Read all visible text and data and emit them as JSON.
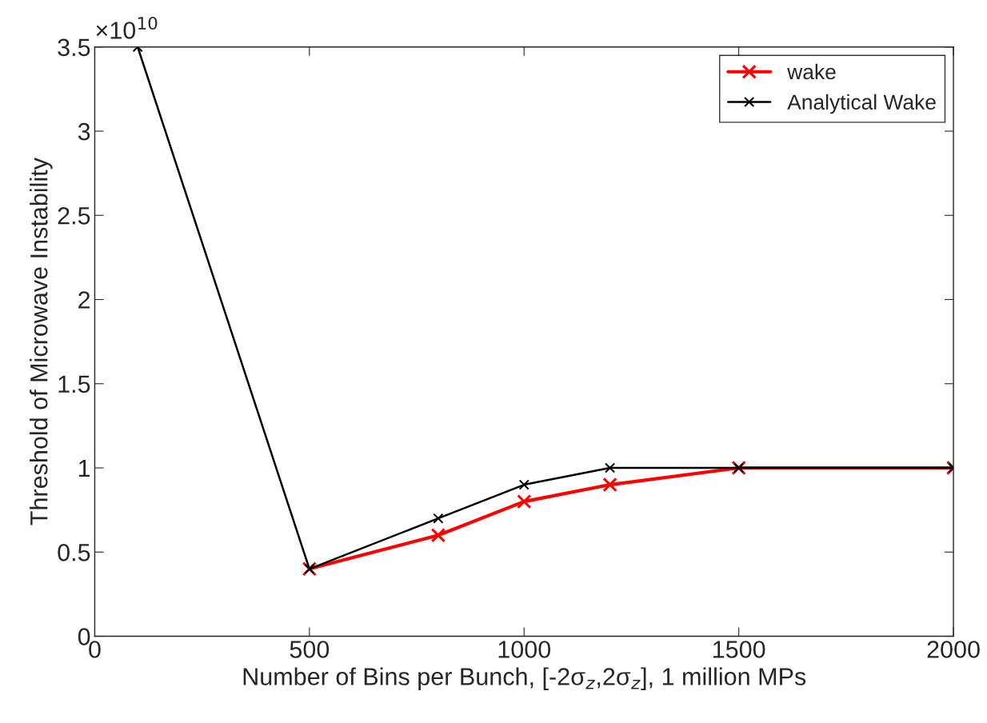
{
  "chart_data": {
    "type": "line",
    "xlabel": "Number of Bins per Bunch, [-2σ$_{z}$,2σ$_{z}$], 1 million MPs",
    "ylabel": "Threshold of Microwave Instability",
    "annotations": [
      "×10$^{10}$"
    ],
    "x": [
      100,
      500,
      800,
      1000,
      1200,
      1500,
      2000
    ],
    "series": [
      {
        "name": "wake",
        "color": "#ff0000",
        "values": [
          null,
          0.4,
          0.6,
          0.8,
          0.9,
          1.0,
          1.0
        ]
      },
      {
        "name": "Analytical Wake",
        "color": "#000000",
        "values": [
          3.5,
          0.4,
          0.7,
          0.9,
          1.0,
          1.0,
          1.0
        ]
      }
    ],
    "xlim": [
      0,
      2000
    ],
    "ylim": [
      0,
      3.5
    ],
    "xticks": [
      0,
      500,
      1000,
      1500,
      2000
    ],
    "yticks": [
      0,
      0.5,
      1,
      1.5,
      2,
      2.5,
      3,
      3.5
    ],
    "grid": false,
    "legend": "top right",
    "marker": "cross",
    "line_style": "solid"
  }
}
